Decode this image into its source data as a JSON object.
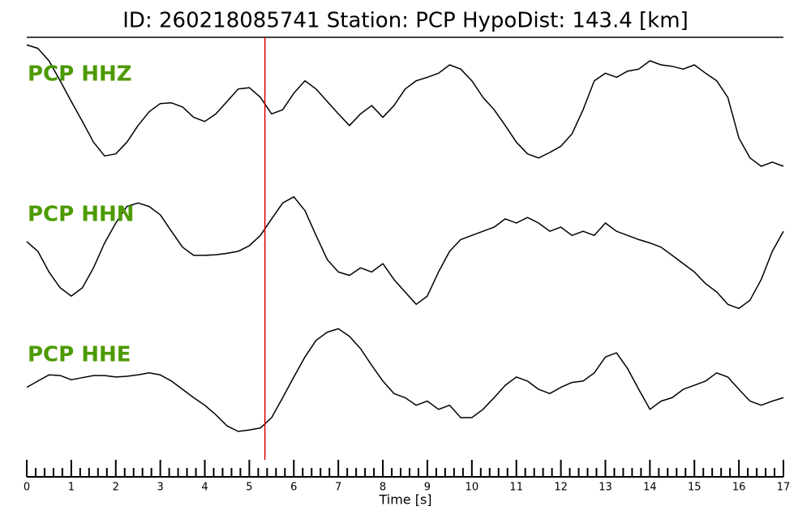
{
  "chart_data": {
    "type": "line",
    "title": "ID: 260218085741   Station: PCP   HypoDist:   143.4 [km]",
    "xlabel": "Time [s]",
    "xlim": [
      0,
      17
    ],
    "xticks": [
      0,
      1,
      2,
      3,
      4,
      5,
      6,
      7,
      8,
      9,
      10,
      11,
      12,
      13,
      14,
      15,
      16,
      17
    ],
    "xminor_divisions": 5,
    "ylim": [
      -1,
      1
    ],
    "label_color": "#4d9a00",
    "vline": {
      "x": 5.35,
      "color": "#e00000"
    },
    "x": [
      0,
      0.25,
      0.5,
      0.75,
      1,
      1.25,
      1.5,
      1.75,
      2,
      2.25,
      2.5,
      2.75,
      3,
      3.25,
      3.5,
      3.75,
      4,
      4.25,
      4.5,
      4.75,
      5,
      5.25,
      5.5,
      5.75,
      6,
      6.25,
      6.5,
      6.75,
      7,
      7.25,
      7.5,
      7.75,
      8,
      8.25,
      8.5,
      8.75,
      9,
      9.25,
      9.5,
      9.75,
      10,
      10.25,
      10.5,
      10.75,
      11,
      11.25,
      11.5,
      11.75,
      12,
      12.25,
      12.5,
      12.75,
      13,
      13.25,
      13.5,
      13.75,
      14,
      14.25,
      14.5,
      14.75,
      15,
      15.25,
      15.5,
      15.75,
      16,
      16.25,
      16.5,
      16.75,
      17
    ],
    "series": [
      {
        "name": "PCP HHZ",
        "color": "#000000",
        "values": [
          0.96,
          0.91,
          0.73,
          0.44,
          0.14,
          -0.15,
          -0.45,
          -0.65,
          -0.62,
          -0.45,
          -0.21,
          -0.01,
          0.11,
          0.12,
          0.06,
          -0.09,
          -0.15,
          -0.04,
          0.14,
          0.32,
          0.34,
          0.2,
          -0.04,
          0.02,
          0.26,
          0.44,
          0.32,
          0.14,
          -0.04,
          -0.21,
          -0.04,
          0.08,
          -0.09,
          0.08,
          0.32,
          0.44,
          0.49,
          0.55,
          0.67,
          0.61,
          0.44,
          0.2,
          0.02,
          -0.21,
          -0.45,
          -0.62,
          -0.68,
          -0.6,
          -0.51,
          -0.33,
          0.02,
          0.44,
          0.55,
          0.49,
          0.58,
          0.61,
          0.73,
          0.67,
          0.65,
          0.61,
          0.67,
          0.55,
          0.44,
          0.2,
          -0.39,
          -0.68,
          -0.8,
          -0.74,
          -0.8
        ]
      },
      {
        "name": "PCP HHN",
        "color": "#000000",
        "values": [
          0.13,
          -0.01,
          -0.31,
          -0.54,
          -0.66,
          -0.54,
          -0.25,
          0.11,
          0.4,
          0.64,
          0.69,
          0.64,
          0.52,
          0.28,
          0.05,
          -0.07,
          -0.07,
          -0.06,
          -0.04,
          -0.01,
          0.07,
          0.22,
          0.46,
          0.69,
          0.78,
          0.58,
          0.22,
          -0.13,
          -0.31,
          -0.36,
          -0.25,
          -0.31,
          -0.19,
          -0.42,
          -0.6,
          -0.78,
          -0.66,
          -0.31,
          -0.01,
          0.16,
          0.22,
          0.28,
          0.34,
          0.46,
          0.4,
          0.48,
          0.4,
          0.28,
          0.34,
          0.22,
          0.28,
          0.22,
          0.4,
          0.28,
          0.22,
          0.16,
          0.11,
          0.05,
          -0.07,
          -0.19,
          -0.31,
          -0.48,
          -0.6,
          -0.78,
          -0.84,
          -0.72,
          -0.42,
          -0.01,
          0.28
        ]
      },
      {
        "name": "PCP HHE",
        "color": "#000000",
        "values": [
          0.04,
          0.13,
          0.22,
          0.21,
          0.15,
          0.18,
          0.21,
          0.21,
          0.19,
          0.2,
          0.22,
          0.25,
          0.22,
          0.13,
          0.01,
          -0.11,
          -0.22,
          -0.36,
          -0.52,
          -0.6,
          -0.58,
          -0.55,
          -0.4,
          -0.11,
          0.19,
          0.48,
          0.72,
          0.84,
          0.89,
          0.78,
          0.6,
          0.36,
          0.13,
          -0.05,
          -0.11,
          -0.22,
          -0.16,
          -0.28,
          -0.22,
          -0.4,
          -0.4,
          -0.28,
          -0.11,
          0.07,
          0.19,
          0.13,
          0.01,
          -0.05,
          0.04,
          0.11,
          0.13,
          0.25,
          0.48,
          0.54,
          0.31,
          0.01,
          -0.28,
          -0.16,
          -0.11,
          0.01,
          0.07,
          0.13,
          0.25,
          0.19,
          0.01,
          -0.16,
          -0.22,
          -0.16,
          -0.11
        ]
      }
    ]
  }
}
